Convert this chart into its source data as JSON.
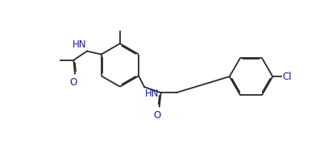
{
  "background": "#ffffff",
  "line_color": "#2a2a2a",
  "text_color": "#1818aa",
  "lw": 1.3,
  "fs": 8.5,
  "dbo": 0.032,
  "xlim": [
    -0.3,
    9.7
  ],
  "ylim": [
    0.2,
    4.8
  ]
}
